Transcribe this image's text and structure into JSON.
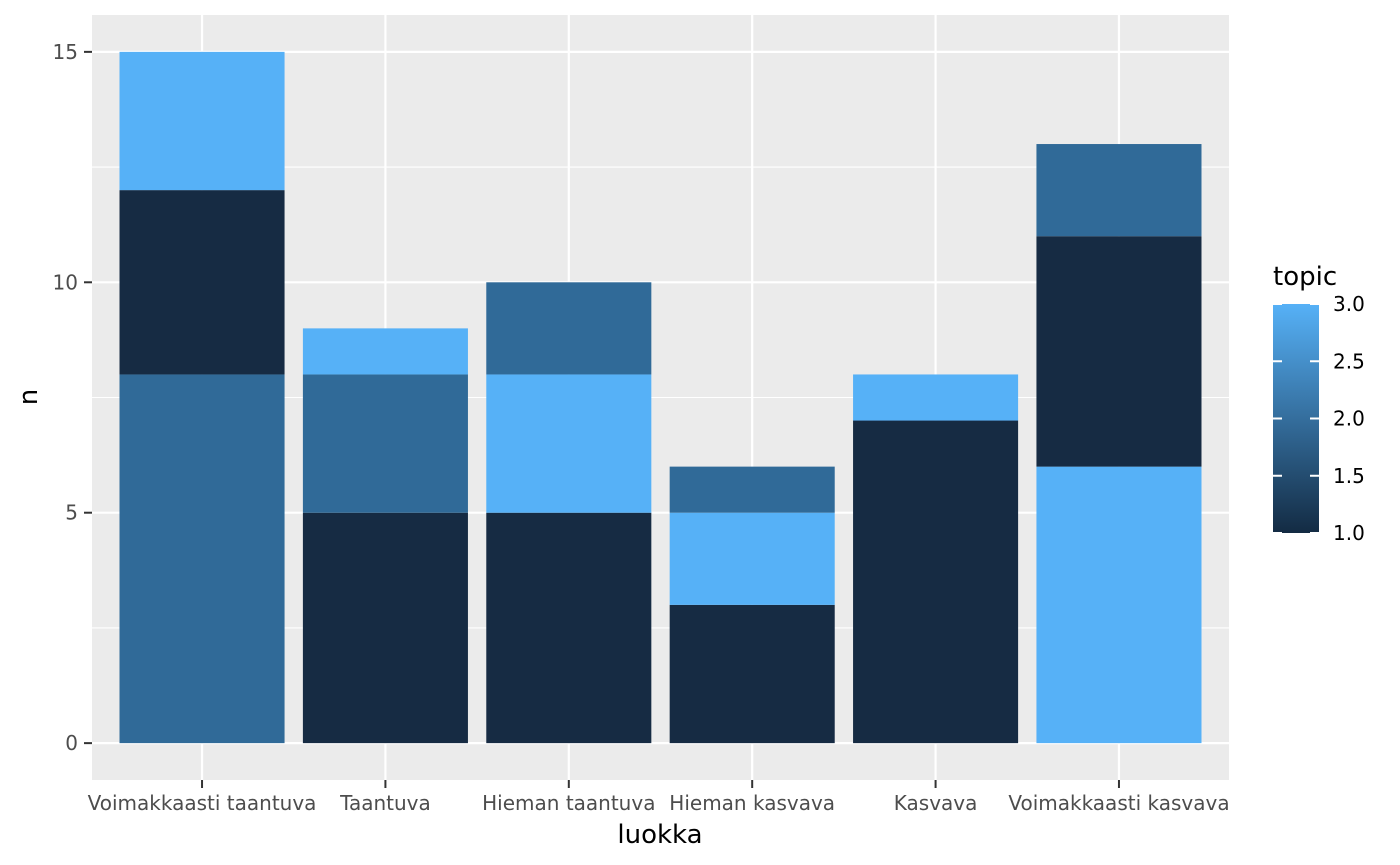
{
  "chart_data": {
    "type": "bar",
    "stacked": true,
    "xlabel": "luokka",
    "ylabel": "n",
    "ylim": [
      -0.8,
      15.8
    ],
    "yticks": [
      "0",
      "5",
      "10",
      "15"
    ],
    "grid": true,
    "legend_position": "right",
    "panel_background": "#ebebeb",
    "categories": [
      "Voimakkaasti taantuva",
      "Taantuva",
      "Hieman taantuva",
      "Hieman kasvava",
      "Kasvava",
      "Voimakkaasti kasvava"
    ],
    "stacks": [
      [
        {
          "topic": 2,
          "value": 8
        },
        {
          "topic": 1,
          "value": 4
        },
        {
          "topic": 3,
          "value": 3
        }
      ],
      [
        {
          "topic": 1,
          "value": 5
        },
        {
          "topic": 2,
          "value": 3
        },
        {
          "topic": 3,
          "value": 1
        }
      ],
      [
        {
          "topic": 1,
          "value": 5
        },
        {
          "topic": 3,
          "value": 3
        },
        {
          "topic": 2,
          "value": 2
        }
      ],
      [
        {
          "topic": 1,
          "value": 3
        },
        {
          "topic": 3,
          "value": 2
        },
        {
          "topic": 2,
          "value": 1
        }
      ],
      [
        {
          "topic": 1,
          "value": 7
        },
        {
          "topic": 3,
          "value": 1
        }
      ],
      [
        {
          "topic": 3,
          "value": 6
        },
        {
          "topic": 1,
          "value": 5
        },
        {
          "topic": 2,
          "value": 2
        }
      ]
    ],
    "topic_colors": {
      "1": "#162b43",
      "2": "#306a98",
      "3": "#56b1f7"
    },
    "legend": {
      "title": "topic",
      "labels": [
        "3.0",
        "2.5",
        "2.0",
        "1.5",
        "1.0"
      ],
      "gradient_low": "#132b43",
      "gradient_high": "#56b1f7"
    }
  }
}
